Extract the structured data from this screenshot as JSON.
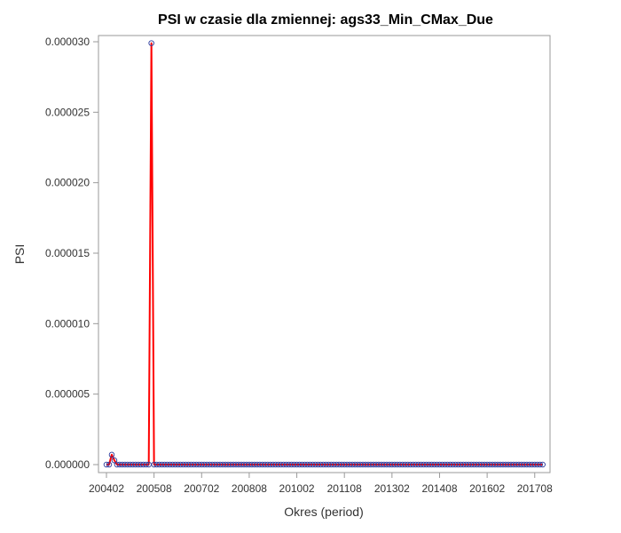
{
  "chart_data": {
    "type": "line",
    "title": "PSI w czasie dla zmiennej: ags33_Min_CMax_Due",
    "xlabel": "Okres (period)",
    "ylabel": "PSI",
    "x_tick_labels": [
      "200402",
      "200508",
      "200702",
      "200808",
      "201002",
      "201108",
      "201302",
      "201408",
      "201602",
      "201708"
    ],
    "y_tick_labels": [
      "0.000000",
      "0.000005",
      "0.000010",
      "0.000015",
      "0.000020",
      "0.000025",
      "0.000030"
    ],
    "ylim": [
      0,
      3e-05
    ],
    "x_start_period": "200402",
    "n_periods": 166,
    "series": [
      {
        "line_color": "#ff0000",
        "marker_color": "#2b3a9c",
        "marker": "circle-open",
        "baseline_value": 0,
        "nonzero_points": [
          {
            "period": "200404",
            "value": 7e-07
          },
          {
            "period": "200405",
            "value": 3e-07
          },
          {
            "period": "200507",
            "value": 2.99e-05
          }
        ]
      }
    ]
  }
}
